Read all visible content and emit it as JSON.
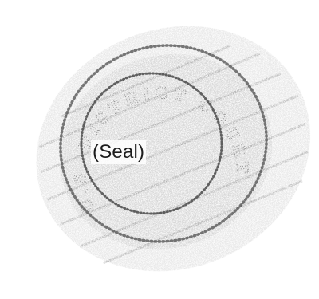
{
  "document": {
    "seal_caption": "(Seal)",
    "seal_legend": "U.S. DISTRICT COURT"
  },
  "colors": {
    "background": "#ffffff",
    "ink": "#1d1d1d",
    "stamp_ink": "#5a5a5a"
  }
}
